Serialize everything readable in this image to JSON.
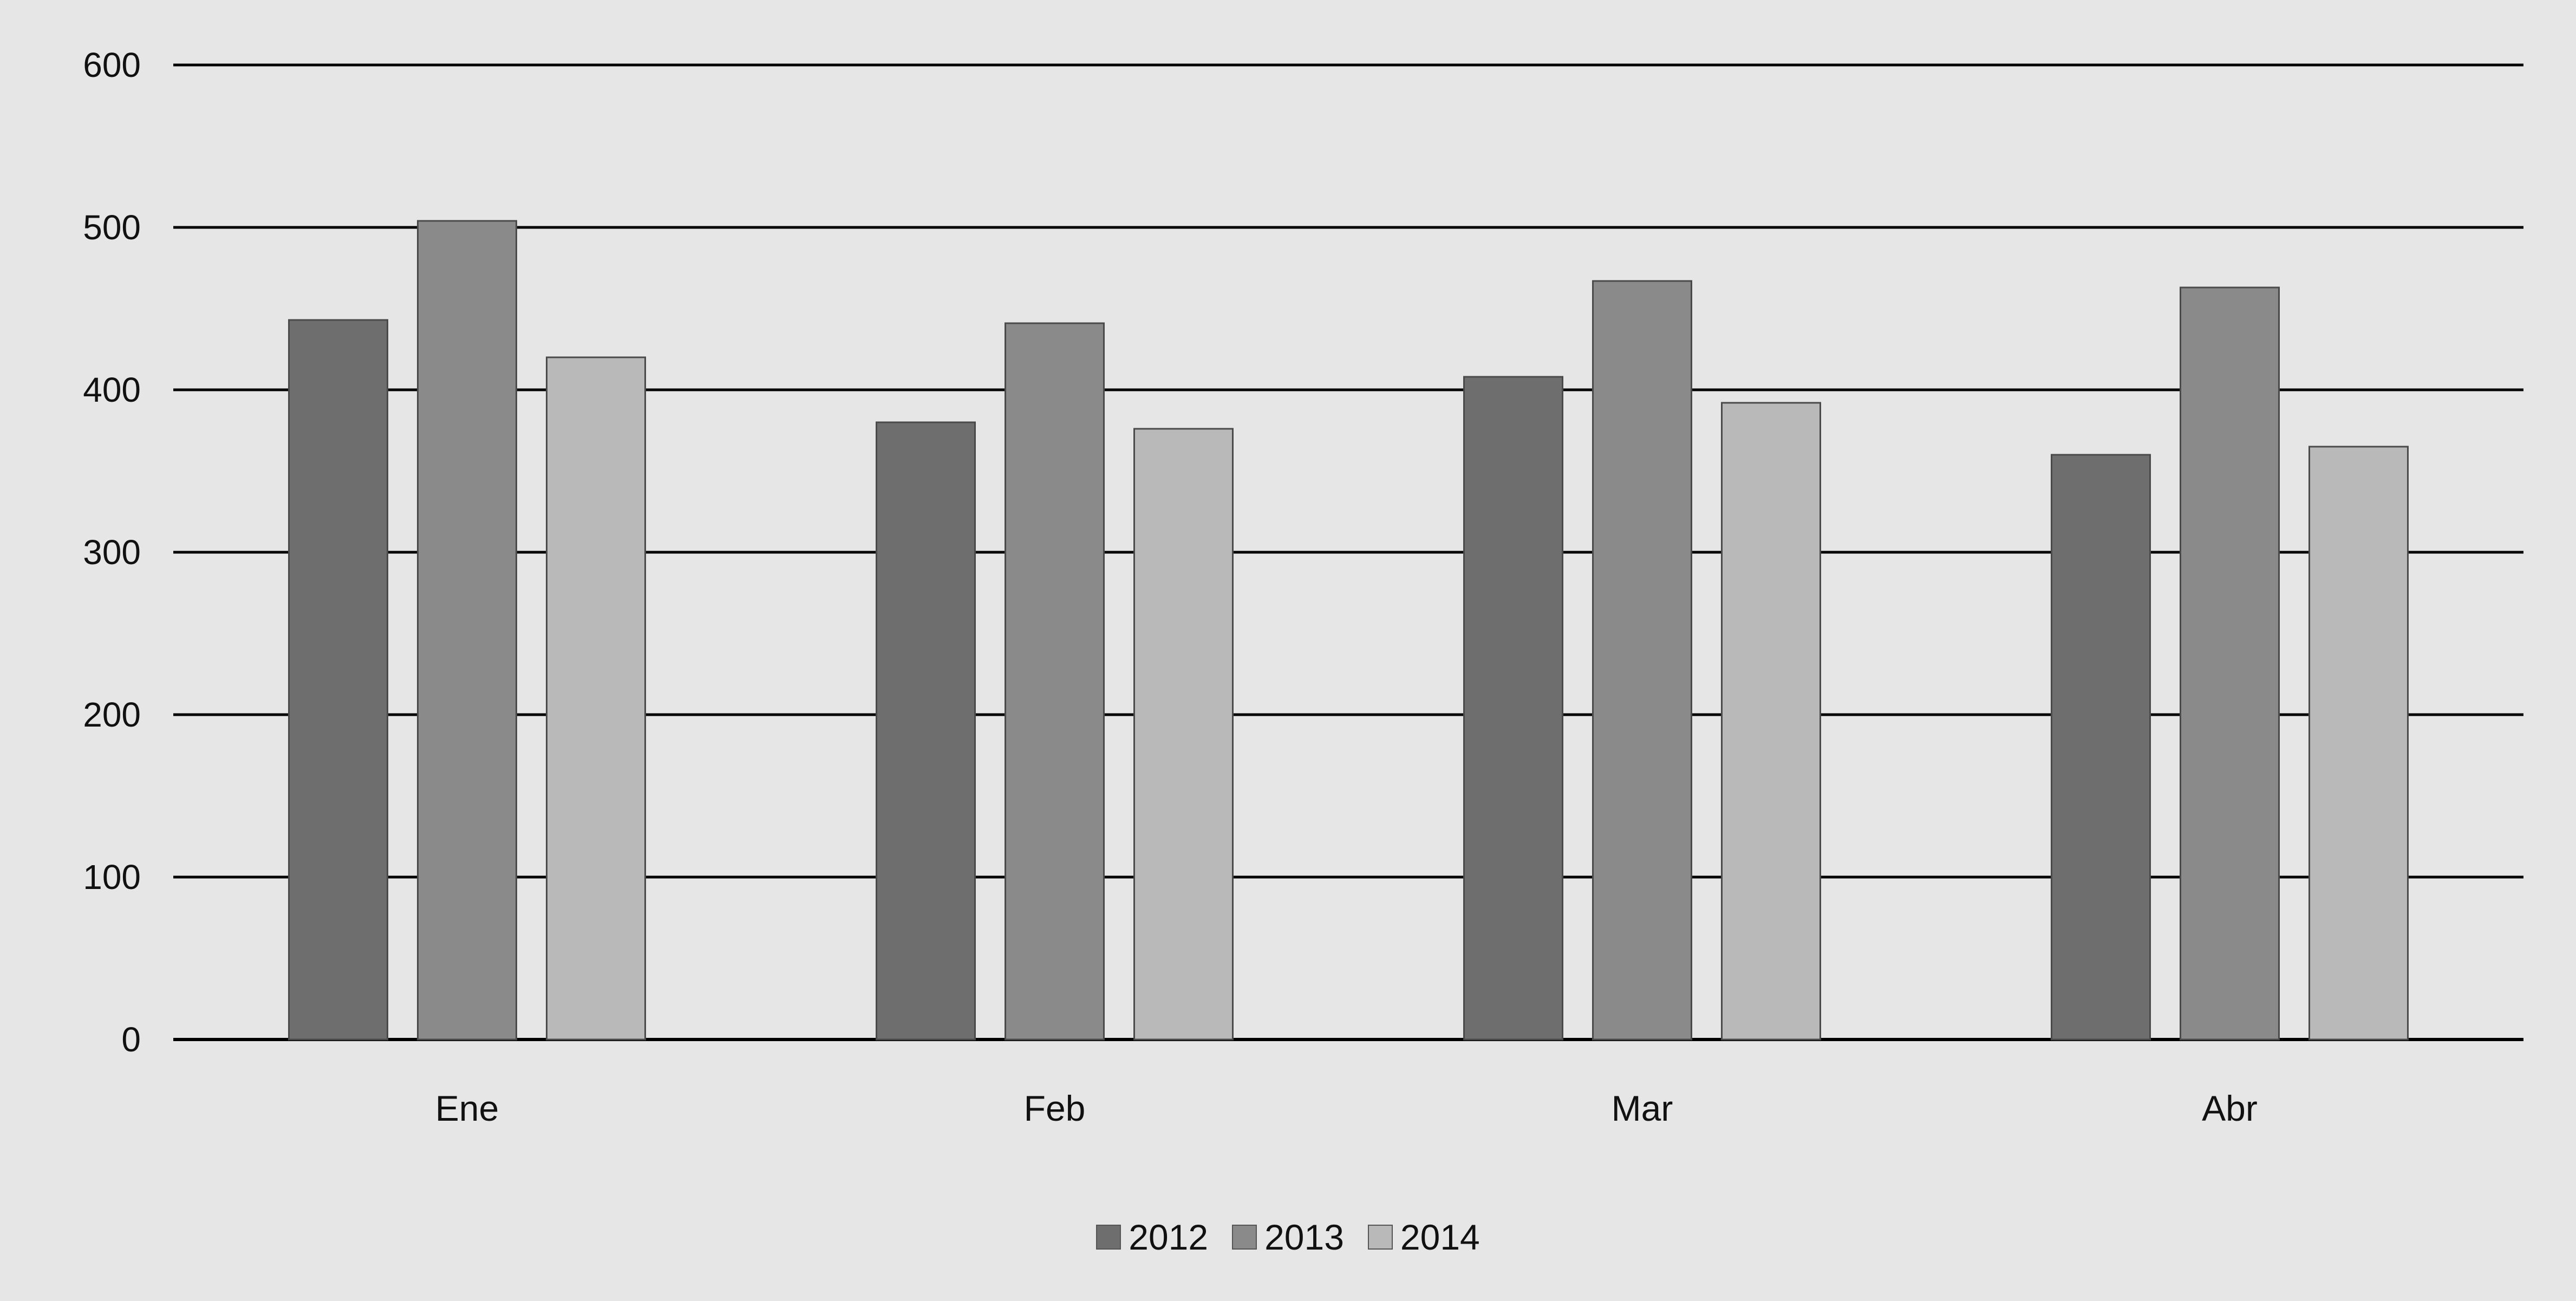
{
  "chart_data": {
    "type": "bar",
    "title": "",
    "xlabel": "",
    "ylabel": "",
    "categories": [
      "Ene",
      "Feb",
      "Mar",
      "Abr"
    ],
    "series": [
      {
        "name": "2012",
        "values": [
          443,
          380,
          408,
          360
        ],
        "color": "#6e6e6e"
      },
      {
        "name": "2013",
        "values": [
          504,
          441,
          467,
          463
        ],
        "color": "#8a8a8a"
      },
      {
        "name": "2014",
        "values": [
          420,
          376,
          392,
          365
        ],
        "color": "#b9b9b9"
      }
    ],
    "ylim": [
      0,
      600
    ],
    "yticks": [
      0,
      100,
      200,
      300,
      400,
      500,
      600
    ],
    "grid": true,
    "legend_position": "bottom"
  }
}
